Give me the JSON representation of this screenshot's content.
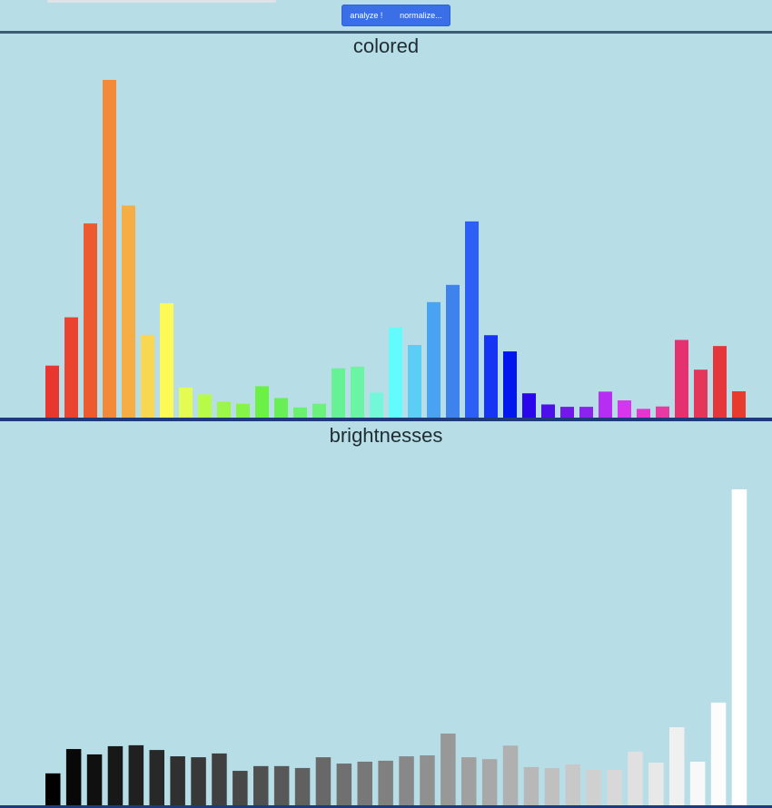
{
  "toolbar": {
    "analyze_label": "analyze !",
    "normalize_label": "normalize..."
  },
  "chart_data": [
    {
      "type": "bar",
      "title": "colored",
      "xlabel": "",
      "ylabel": "",
      "grid": false,
      "ylim": [
        0,
        100
      ],
      "values": [
        15.4,
        29.7,
        57.5,
        100.0,
        62.8,
        24.5,
        33.9,
        8.9,
        6.9,
        4.7,
        4.1,
        9.3,
        5.8,
        3.0,
        4.1,
        14.6,
        15.1,
        7.4,
        26.7,
        21.5,
        34.2,
        39.3,
        58.1,
        24.4,
        19.6,
        7.2,
        3.9,
        3.2,
        3.2,
        7.7,
        5.1,
        2.6,
        3.3,
        23.0,
        14.2,
        21.2,
        7.8
      ],
      "colors": [
        "#e8372e",
        "#ea4431",
        "#ee5a30",
        "#f28a3a",
        "#f6ad44",
        "#f8d853",
        "#fdfa58",
        "#e3fb52",
        "#b8fa48",
        "#9bf647",
        "#86f348",
        "#6bf045",
        "#68ef55",
        "#6bf171",
        "#6cf27a",
        "#66f195",
        "#6af5a4",
        "#74f6d8",
        "#63fcfc",
        "#5ccdf5",
        "#4aa3f2",
        "#3e83ec",
        "#2b5ff6",
        "#1634f4",
        "#0117ee",
        "#2a07ea",
        "#4c10e9",
        "#7418ea",
        "#8b22ee",
        "#b62ef2",
        "#d735ef",
        "#e634d1",
        "#e93aa2",
        "#e5326f",
        "#e33659",
        "#e5373b",
        "#e93b2c"
      ]
    },
    {
      "type": "bar",
      "title": "brightnesses",
      "xlabel": "",
      "ylabel": "",
      "grid": false,
      "ylim": [
        0,
        100
      ],
      "values": [
        10.1,
        17.8,
        16.1,
        18.7,
        19.0,
        17.5,
        15.5,
        15.2,
        16.4,
        10.9,
        12.4,
        12.4,
        11.8,
        15.2,
        13.2,
        13.8,
        14.1,
        15.5,
        15.8,
        22.7,
        15.2,
        14.6,
        18.9,
        12.1,
        11.8,
        12.9,
        11.2,
        11.2,
        17.0,
        13.5,
        24.7,
        13.8,
        32.5,
        100.0
      ],
      "colors": [
        "#000000",
        "#080808",
        "#101010",
        "#181818",
        "#202020",
        "#282828",
        "#303030",
        "#383838",
        "#404040",
        "#484848",
        "#505050",
        "#585858",
        "#606060",
        "#686868",
        "#707070",
        "#787878",
        "#808080",
        "#888888",
        "#909090",
        "#989898",
        "#a0a0a0",
        "#a8a8a8",
        "#b0b0b0",
        "#b8b8b8",
        "#c0c0c0",
        "#c8c8c8",
        "#d0d0d0",
        "#d8d8d8",
        "#e0e0e0",
        "#e8e8e8",
        "#f0f0f0",
        "#f8f8f8",
        "#fcfcfc",
        "#ffffff"
      ]
    }
  ]
}
